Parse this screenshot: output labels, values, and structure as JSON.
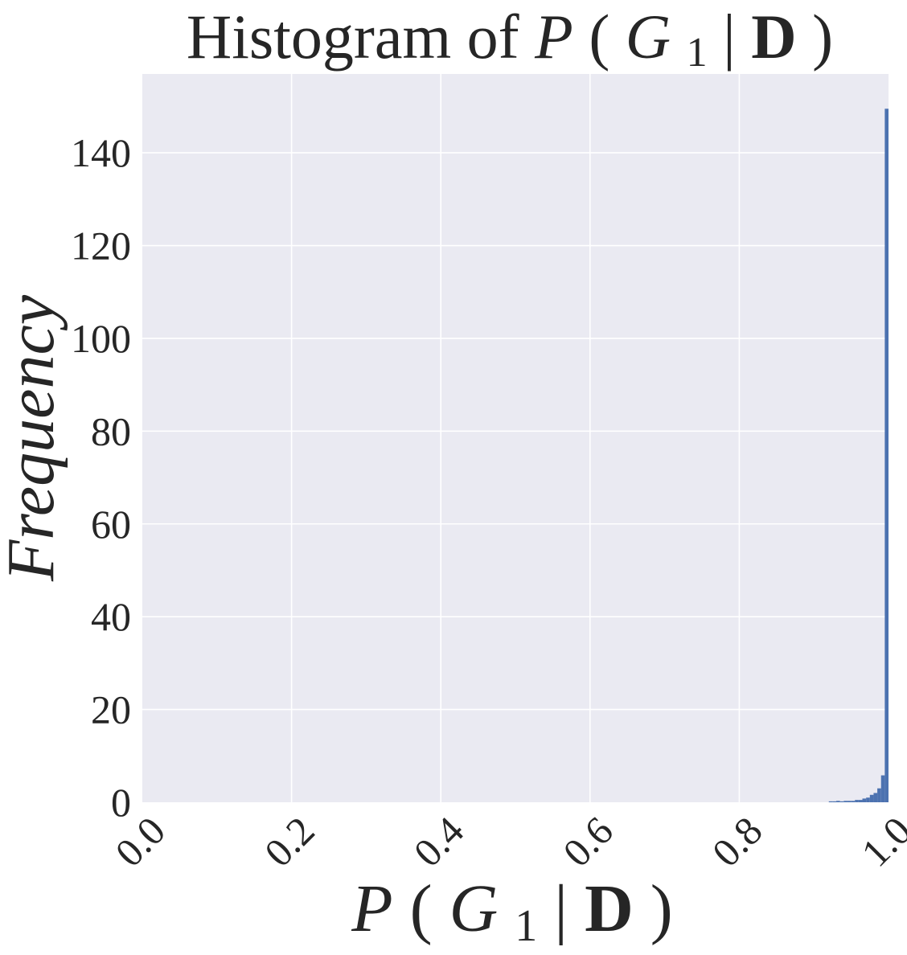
{
  "chart_data": {
    "type": "bar",
    "title": {
      "prefix": "Histogram of ",
      "P": "P",
      "open": "(",
      "G": "G",
      "sub": "1",
      "bar": "|",
      "D": "D",
      "close": ")"
    },
    "xlabel": {
      "P": "P",
      "open": "(",
      "G": "G",
      "sub": "1",
      "bar": "|",
      "D": "D",
      "close": ")"
    },
    "ylabel": "Frequency",
    "xlim": [
      0.0,
      1.0
    ],
    "ylim": [
      0,
      157
    ],
    "x_ticks": [
      "0.0",
      "0.2",
      "0.4",
      "0.6",
      "0.8",
      "1.0"
    ],
    "y_ticks": [
      "0",
      "20",
      "40",
      "60",
      "80",
      "100",
      "120",
      "140"
    ],
    "grid": true,
    "bar_color": "#4c72b0",
    "background_color": "#eaeaf2",
    "grid_color": "#ffffff",
    "bins": [
      {
        "x0": 0.92,
        "x1": 0.925,
        "count": 0.2
      },
      {
        "x0": 0.925,
        "x1": 0.93,
        "count": 0.2
      },
      {
        "x0": 0.93,
        "x1": 0.935,
        "count": 0.3
      },
      {
        "x0": 0.935,
        "x1": 0.94,
        "count": 0.2
      },
      {
        "x0": 0.94,
        "x1": 0.945,
        "count": 0.3
      },
      {
        "x0": 0.945,
        "x1": 0.95,
        "count": 0.3
      },
      {
        "x0": 0.95,
        "x1": 0.955,
        "count": 0.3
      },
      {
        "x0": 0.955,
        "x1": 0.96,
        "count": 0.5
      },
      {
        "x0": 0.96,
        "x1": 0.965,
        "count": 0.5
      },
      {
        "x0": 0.965,
        "x1": 0.97,
        "count": 0.8
      },
      {
        "x0": 0.97,
        "x1": 0.975,
        "count": 1.0
      },
      {
        "x0": 0.975,
        "x1": 0.98,
        "count": 1.6
      },
      {
        "x0": 0.98,
        "x1": 0.985,
        "count": 2.0
      },
      {
        "x0": 0.985,
        "x1": 0.99,
        "count": 3.0
      },
      {
        "x0": 0.99,
        "x1": 0.995,
        "count": 5.8
      },
      {
        "x0": 0.995,
        "x1": 1.0,
        "count": 149.5
      }
    ]
  }
}
